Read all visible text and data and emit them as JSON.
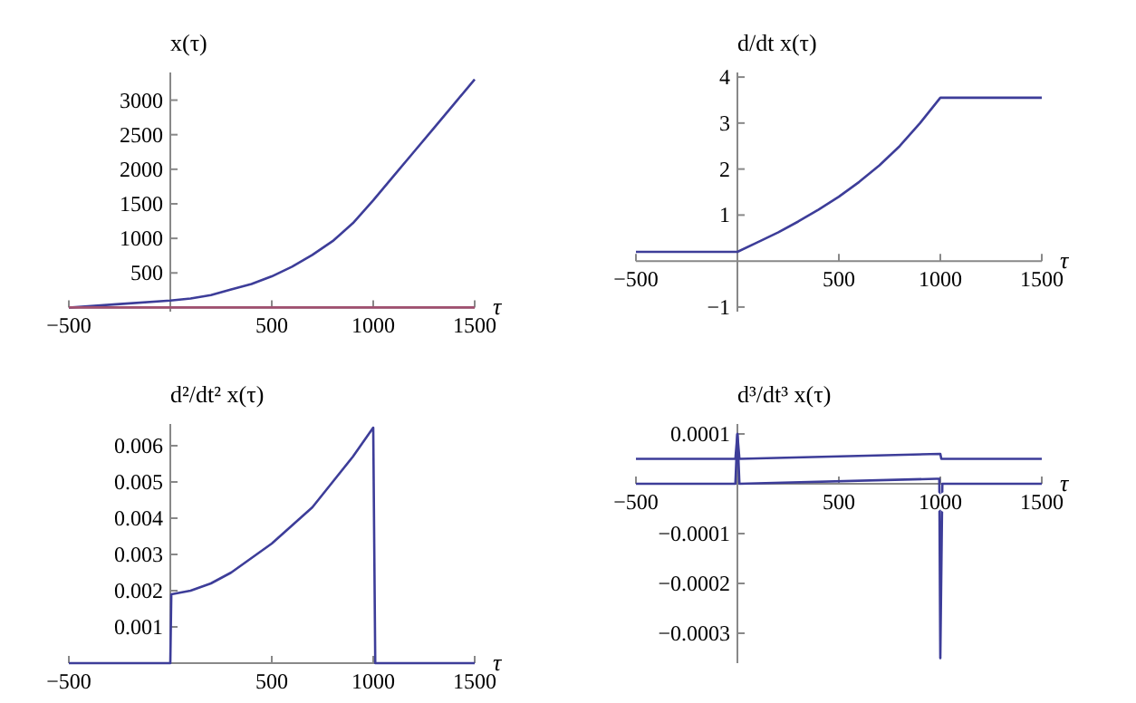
{
  "chart_data": [
    {
      "type": "line",
      "xlabel": "τ",
      "ylabel": "x(τ)",
      "xlim": [
        -500,
        1500
      ],
      "ylim": [
        -60,
        3400
      ],
      "xticks": [
        -500,
        500,
        1000,
        1500
      ],
      "yticks": [
        500,
        1000,
        1500,
        2000,
        2500,
        3000
      ],
      "grid": false,
      "line_style": "solid",
      "series": [
        {
          "color": "#3d3d99",
          "x": [
            -500,
            -250,
            0,
            100,
            200,
            300,
            400,
            500,
            600,
            700,
            800,
            900,
            1000,
            1100,
            1200,
            1300,
            1400,
            1500
          ],
          "values": [
            0,
            50,
            100,
            130,
            180,
            260,
            340,
            450,
            590,
            760,
            960,
            1220,
            1550,
            1900,
            2250,
            2600,
            2950,
            3300
          ]
        },
        {
          "color": "#a05070",
          "x": [
            -500,
            1500
          ],
          "values": [
            0,
            0
          ]
        }
      ]
    },
    {
      "type": "line",
      "xlabel": "τ",
      "ylabel": "d/dt x(τ)",
      "xlim": [
        -500,
        1500
      ],
      "ylim": [
        -1.1,
        4.1
      ],
      "xticks": [
        -500,
        500,
        1000,
        1500
      ],
      "yticks": [
        -1,
        1,
        2,
        3,
        4
      ],
      "grid": false,
      "line_style": "solid",
      "series": [
        {
          "color": "#3d3d99",
          "x": [
            -500,
            0,
            100,
            200,
            300,
            400,
            500,
            600,
            700,
            800,
            900,
            1000,
            1500
          ],
          "values": [
            0.2,
            0.2,
            0.41,
            0.62,
            0.86,
            1.12,
            1.4,
            1.72,
            2.08,
            2.5,
            3.0,
            3.55,
            3.55
          ]
        }
      ]
    },
    {
      "type": "line",
      "xlabel": "τ",
      "ylabel": "d²/dt² x(τ)",
      "xlim": [
        -500,
        1500
      ],
      "ylim": [
        0,
        0.0066
      ],
      "xticks": [
        -500,
        500,
        1000,
        1500
      ],
      "yticks": [
        0.001,
        0.002,
        0.003,
        0.004,
        0.005,
        0.006
      ],
      "grid": false,
      "line_style": "solid",
      "series": [
        {
          "color": "#3d3d99",
          "x": [
            -500,
            0,
            5,
            100,
            200,
            300,
            400,
            500,
            600,
            700,
            800,
            900,
            1000,
            1010,
            1500
          ],
          "values": [
            0,
            0,
            0.0019,
            0.002,
            0.0022,
            0.0025,
            0.0029,
            0.0033,
            0.0038,
            0.0043,
            0.005,
            0.0057,
            0.0065,
            0,
            0
          ]
        }
      ]
    },
    {
      "type": "line",
      "xlabel": "τ",
      "ylabel": "d³/dt³ x(τ)",
      "xlim": [
        -500,
        1500
      ],
      "ylim": [
        -0.00036,
        0.00012
      ],
      "xticks": [
        -500,
        500,
        1000,
        1500
      ],
      "yticks": [
        0.0001,
        -0.0001,
        -0.0002,
        -0.0003
      ],
      "grid": false,
      "line_style": "solid",
      "series": [
        {
          "color": "#3d3d99",
          "x": [
            -500,
            -10,
            0,
            10,
            1000,
            1005,
            1010,
            1500
          ],
          "values": [
            5e-05,
            5e-05,
            0.0001,
            5e-05,
            6e-05,
            5e-05,
            5e-05,
            5e-05
          ]
        },
        {
          "color": "#3d3d99",
          "x": [
            -500,
            -10,
            0,
            10,
            980,
            995,
            1000,
            1010,
            1020,
            1500
          ],
          "values": [
            0,
            0,
            0.0001,
            0,
            1e-05,
            1e-05,
            -0.00035,
            0,
            0,
            0
          ]
        }
      ]
    }
  ]
}
